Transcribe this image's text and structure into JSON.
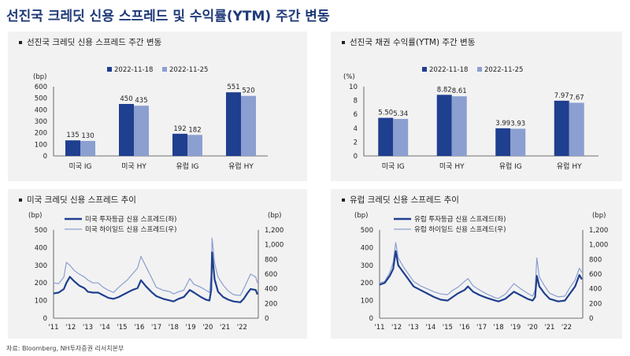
{
  "main_title": "선진국 크레딧 신용 스프레드 및 수익률(YTM) 주간 변동",
  "source": "자료: Bloomberg, NH투자증권 리서치본부",
  "colors": {
    "dark": "#1f3f8f",
    "light": "#8b9fd0",
    "panel": "#f2f2f2"
  },
  "chart_data": [
    {
      "type": "bar",
      "title": "선진국 크레딧 신용 스프레드 주간 변동",
      "unit": "(bp)",
      "categories": [
        "미국 IG",
        "미국 HY",
        "유럽 IG",
        "유럽 HY"
      ],
      "series": [
        {
          "name": "2022-11-18",
          "values": [
            135,
            450,
            192,
            551
          ]
        },
        {
          "name": "2022-11-25",
          "values": [
            130,
            435,
            182,
            520
          ]
        }
      ],
      "ylim": [
        0,
        600
      ],
      "yticks": [
        0,
        100,
        200,
        300,
        400,
        500,
        600
      ],
      "value_labels": [
        [
          "135",
          "450",
          "192",
          "551"
        ],
        [
          "130",
          "435",
          "182",
          "520"
        ]
      ]
    },
    {
      "type": "bar",
      "title": "선진국 채권 수익률(YTM) 주간 변동",
      "unit": "(%)",
      "categories": [
        "미국 IG",
        "미국 HY",
        "유럽 IG",
        "유럽 HY"
      ],
      "series": [
        {
          "name": "2022-11-18",
          "values": [
            5.5,
            8.82,
            3.99,
            7.97
          ]
        },
        {
          "name": "2022-11-25",
          "values": [
            5.34,
            8.61,
            3.93,
            7.67
          ]
        }
      ],
      "ylim": [
        0,
        10
      ],
      "yticks": [
        0,
        2,
        4,
        6,
        8,
        10
      ],
      "value_labels": [
        [
          "5.50",
          "8.82",
          "3.99",
          "7.97"
        ],
        [
          "5.34",
          "8.61",
          "3.93",
          "7.67"
        ]
      ]
    },
    {
      "type": "line",
      "title": "미국 크레딧 신용 스프레드 추이",
      "left_unit": "(bp)",
      "right_unit": "(bp)",
      "x_ticks": [
        "'11",
        "'12",
        "'13",
        "'14",
        "'15",
        "'16",
        "'17",
        "'18",
        "'19",
        "'20",
        "'21",
        "'22"
      ],
      "xlim": [
        2011.0,
        2022.95
      ],
      "left_ylim": [
        0,
        500
      ],
      "left_yticks": [
        0,
        100,
        200,
        300,
        400,
        500
      ],
      "right_ylim": [
        0,
        1200
      ],
      "right_yticks": [
        "0",
        "200",
        "400",
        "600",
        "800",
        "1,000",
        "1,200"
      ],
      "series": [
        {
          "name": "미국 투자등급 신용 스프레드(좌)",
          "axis": "left",
          "x": [
            2011.0,
            2011.3,
            2011.6,
            2011.75,
            2011.95,
            2012.2,
            2012.5,
            2012.8,
            2013.0,
            2013.3,
            2013.6,
            2013.9,
            2014.2,
            2014.5,
            2014.8,
            2015.0,
            2015.3,
            2015.6,
            2015.9,
            2016.1,
            2016.4,
            2016.7,
            2017.0,
            2017.4,
            2017.8,
            2018.0,
            2018.3,
            2018.6,
            2018.95,
            2019.2,
            2019.6,
            2019.9,
            2020.1,
            2020.2,
            2020.25,
            2020.4,
            2020.6,
            2020.9,
            2021.2,
            2021.5,
            2021.9,
            2022.1,
            2022.3,
            2022.5,
            2022.8,
            2022.9
          ],
          "y": [
            140,
            145,
            165,
            200,
            235,
            210,
            185,
            170,
            150,
            145,
            145,
            130,
            115,
            110,
            120,
            130,
            145,
            160,
            170,
            215,
            180,
            150,
            125,
            110,
            100,
            95,
            110,
            120,
            160,
            145,
            120,
            105,
            100,
            160,
            373,
            220,
            150,
            120,
            105,
            95,
            90,
            110,
            140,
            165,
            160,
            135
          ]
        },
        {
          "name": "미국 하이일드 신용 스프레드(우)",
          "axis": "right",
          "x": [
            2011.0,
            2011.3,
            2011.6,
            2011.75,
            2011.95,
            2012.2,
            2012.5,
            2012.8,
            2013.0,
            2013.3,
            2013.6,
            2013.9,
            2014.2,
            2014.5,
            2014.8,
            2015.0,
            2015.3,
            2015.6,
            2015.9,
            2016.1,
            2016.4,
            2016.7,
            2017.0,
            2017.4,
            2017.8,
            2018.0,
            2018.3,
            2018.6,
            2018.95,
            2019.2,
            2019.6,
            2019.9,
            2020.1,
            2020.2,
            2020.25,
            2020.4,
            2020.6,
            2020.9,
            2021.2,
            2021.5,
            2021.9,
            2022.1,
            2022.3,
            2022.5,
            2022.8,
            2022.9
          ],
          "y": [
            480,
            470,
            560,
            760,
            720,
            650,
            600,
            560,
            520,
            480,
            480,
            420,
            380,
            350,
            420,
            460,
            520,
            600,
            680,
            840,
            700,
            560,
            420,
            380,
            360,
            330,
            360,
            380,
            540,
            460,
            420,
            380,
            350,
            600,
            1090,
            750,
            560,
            450,
            370,
            320,
            310,
            400,
            500,
            600,
            560,
            480
          ]
        }
      ]
    },
    {
      "type": "line",
      "title": "유럽 크레딧 신용 스프레드 추이",
      "left_unit": "(bp)",
      "right_unit": "(bp)",
      "x_ticks": [
        "'11",
        "'12",
        "'13",
        "'14",
        "'15",
        "'16",
        "'17",
        "'18",
        "'19",
        "'20",
        "'21",
        "'22"
      ],
      "xlim": [
        2011.0,
        2022.95
      ],
      "left_ylim": [
        0,
        500
      ],
      "left_yticks": [
        0,
        100,
        200,
        300,
        400,
        500
      ],
      "right_ylim": [
        0,
        1200
      ],
      "right_yticks": [
        "0",
        "200",
        "400",
        "600",
        "800",
        "1,000",
        "1,200"
      ],
      "series": [
        {
          "name": "유럽 투자등급 신용 스프레드(좌)",
          "axis": "left",
          "x": [
            2011.0,
            2011.3,
            2011.6,
            2011.8,
            2011.95,
            2012.1,
            2012.4,
            2012.7,
            2013.0,
            2013.4,
            2013.8,
            2014.2,
            2014.6,
            2015.0,
            2015.3,
            2015.6,
            2016.0,
            2016.2,
            2016.5,
            2016.9,
            2017.3,
            2017.8,
            2018.0,
            2018.4,
            2018.9,
            2019.3,
            2019.7,
            2020.0,
            2020.15,
            2020.25,
            2020.4,
            2020.7,
            2021.0,
            2021.5,
            2021.9,
            2022.2,
            2022.5,
            2022.75,
            2022.9
          ],
          "y": [
            190,
            200,
            240,
            280,
            380,
            300,
            260,
            220,
            180,
            160,
            140,
            120,
            105,
            100,
            120,
            140,
            160,
            180,
            150,
            130,
            115,
            100,
            95,
            110,
            150,
            130,
            110,
            100,
            120,
            240,
            180,
            140,
            110,
            95,
            100,
            140,
            180,
            245,
            220
          ]
        },
        {
          "name": "유럽 하이일드 신용 스프레드(우)",
          "axis": "right",
          "x": [
            2011.0,
            2011.3,
            2011.6,
            2011.8,
            2011.95,
            2012.1,
            2012.4,
            2012.7,
            2013.0,
            2013.4,
            2013.8,
            2014.2,
            2014.6,
            2015.0,
            2015.3,
            2015.6,
            2016.0,
            2016.2,
            2016.5,
            2016.9,
            2017.3,
            2017.8,
            2018.0,
            2018.4,
            2018.9,
            2019.3,
            2019.7,
            2020.0,
            2020.15,
            2020.25,
            2020.4,
            2020.7,
            2021.0,
            2021.5,
            2021.9,
            2022.2,
            2022.5,
            2022.75,
            2022.9
          ],
          "y": [
            480,
            500,
            620,
            760,
            1030,
            820,
            700,
            600,
            500,
            440,
            400,
            360,
            330,
            320,
            380,
            420,
            500,
            540,
            440,
            380,
            330,
            280,
            270,
            330,
            470,
            400,
            340,
            300,
            380,
            820,
            560,
            440,
            340,
            290,
            300,
            420,
            520,
            680,
            620
          ]
        }
      ]
    }
  ]
}
